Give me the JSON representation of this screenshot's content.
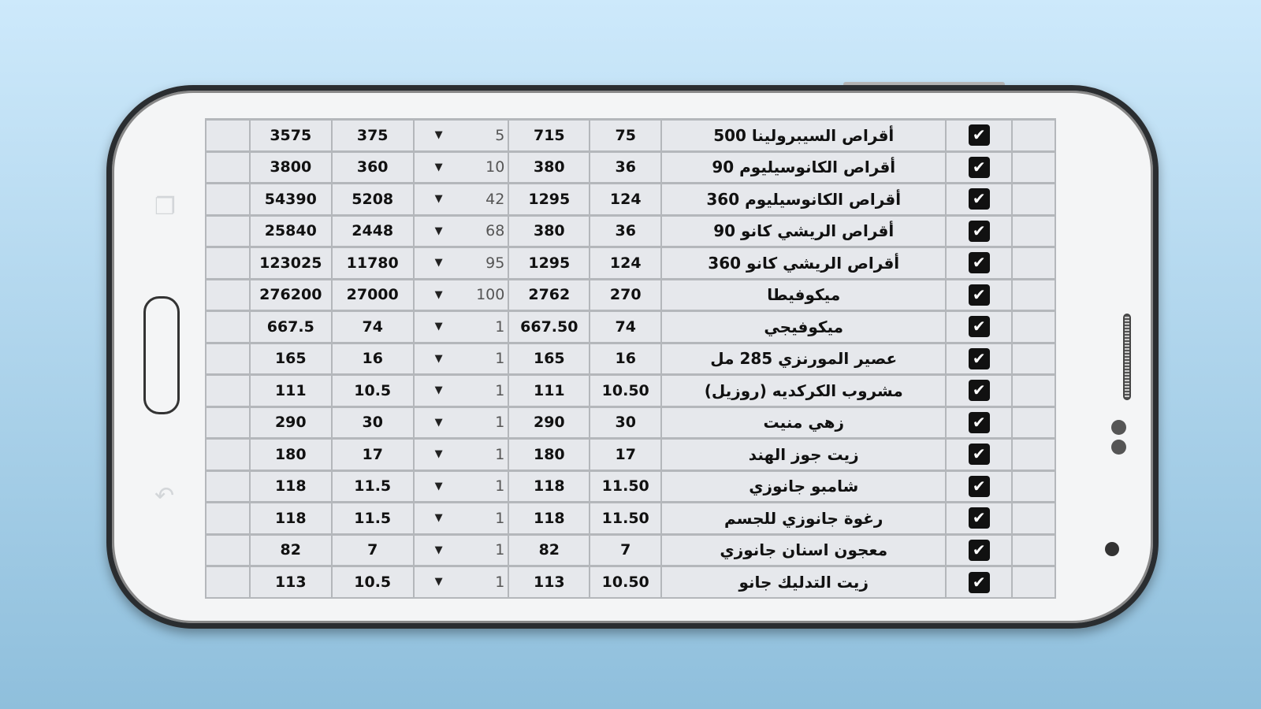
{
  "rows": [
    {
      "name": "أقراص السيبرولينا 500",
      "unit": "75",
      "price": "715",
      "qty": "5",
      "unit_total": "375",
      "total": "3575",
      "checked": true
    },
    {
      "name": "أقراص الكانوسيليوم 90",
      "unit": "36",
      "price": "380",
      "qty": "10",
      "unit_total": "360",
      "total": "3800",
      "checked": true
    },
    {
      "name": "أقراص الكانوسيليوم 360",
      "unit": "124",
      "price": "1295",
      "qty": "42",
      "unit_total": "5208",
      "total": "54390",
      "checked": true
    },
    {
      "name": "أقراص الريشي كانو 90",
      "unit": "36",
      "price": "380",
      "qty": "68",
      "unit_total": "2448",
      "total": "25840",
      "checked": true
    },
    {
      "name": "أقراص الريشي كانو 360",
      "unit": "124",
      "price": "1295",
      "qty": "95",
      "unit_total": "11780",
      "total": "123025",
      "checked": true
    },
    {
      "name": "ميكوفيطا",
      "unit": "270",
      "price": "2762",
      "qty": "100",
      "unit_total": "27000",
      "total": "276200",
      "checked": true
    },
    {
      "name": "ميكوفيجي",
      "unit": "74",
      "price": "667.50",
      "qty": "1",
      "unit_total": "74",
      "total": "667.5",
      "checked": true
    },
    {
      "name": "عصير المورنزي 285 مل",
      "unit": "16",
      "price": "165",
      "qty": "1",
      "unit_total": "16",
      "total": "165",
      "checked": true
    },
    {
      "name": "مشروب الكركديه (روزيل)",
      "unit": "10.50",
      "price": "111",
      "qty": "1",
      "unit_total": "10.5",
      "total": "111",
      "checked": true
    },
    {
      "name": "زهي منيت",
      "unit": "30",
      "price": "290",
      "qty": "1",
      "unit_total": "30",
      "total": "290",
      "checked": true
    },
    {
      "name": "زيت جوز الهند",
      "unit": "17",
      "price": "180",
      "qty": "1",
      "unit_total": "17",
      "total": "180",
      "checked": true
    },
    {
      "name": "شامبو جانوزي",
      "unit": "11.50",
      "price": "118",
      "qty": "1",
      "unit_total": "11.5",
      "total": "118",
      "checked": true
    },
    {
      "name": "رغوة جانوزي للجسم",
      "unit": "11.50",
      "price": "118",
      "qty": "1",
      "unit_total": "11.5",
      "total": "118",
      "checked": true
    },
    {
      "name": "معجون اسنان جانوزي",
      "unit": "7",
      "price": "82",
      "qty": "1",
      "unit_total": "7",
      "total": "82",
      "checked": true
    },
    {
      "name": "زيت التدليك جانو",
      "unit": "10.50",
      "price": "113",
      "qty": "1",
      "unit_total": "10.5",
      "total": "113",
      "checked": true
    }
  ],
  "icons": {
    "checkbox": "check-icon",
    "dropdown": "caret-down-icon",
    "recent": "recent-apps-icon",
    "back": "back-icon"
  },
  "glyphs": {
    "check": "✔",
    "caret": "▼",
    "recent": "❐",
    "back": "↶"
  }
}
